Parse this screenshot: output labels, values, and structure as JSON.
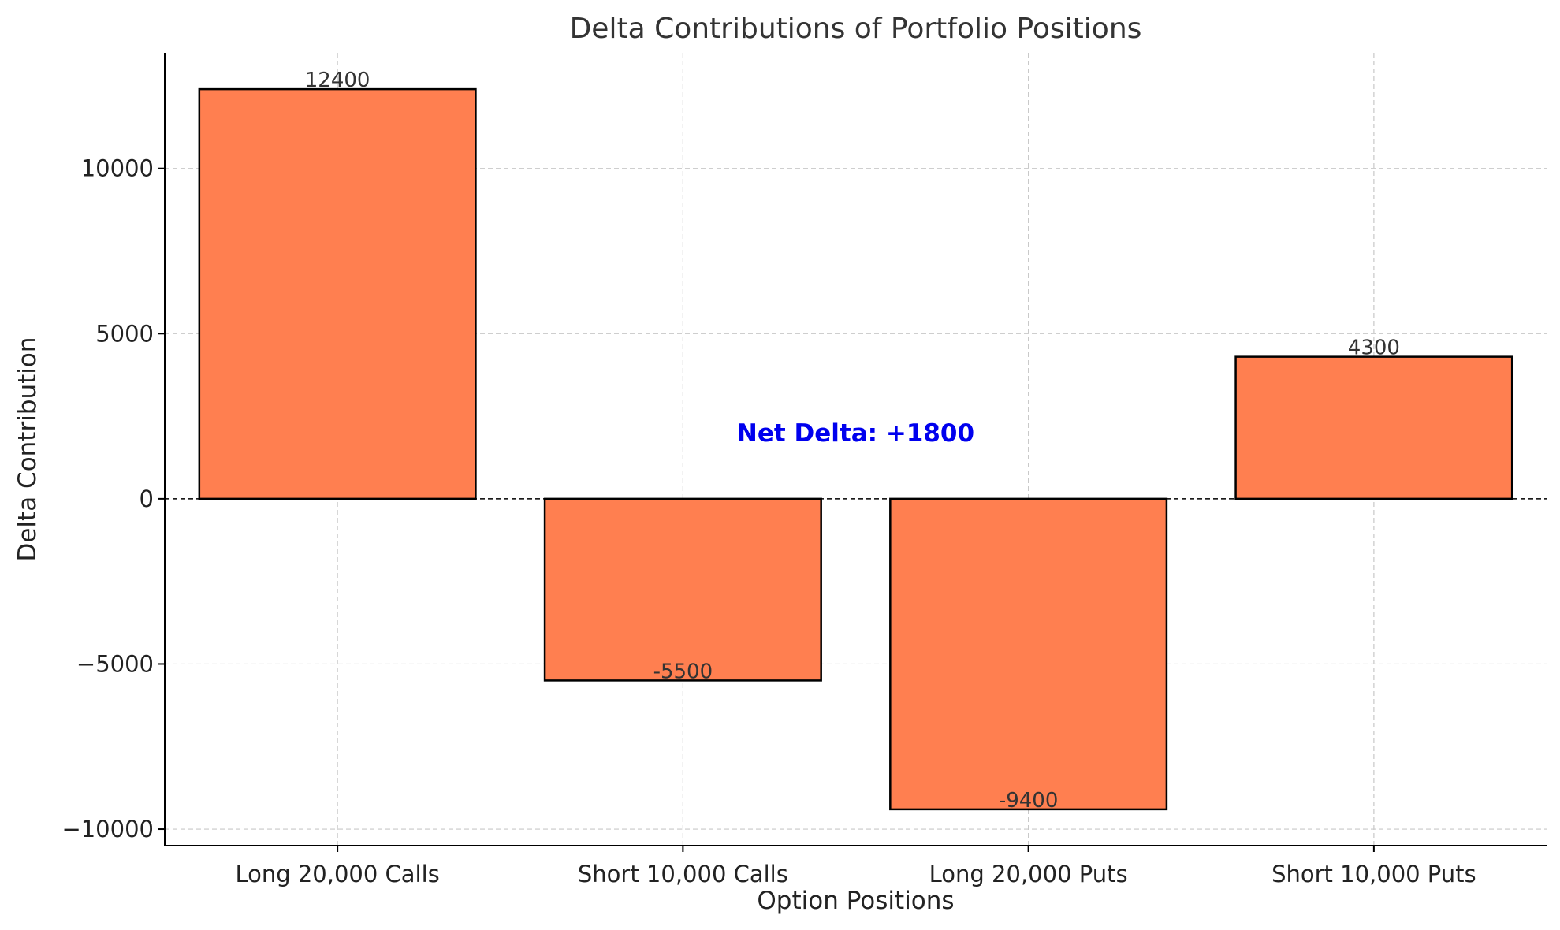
{
  "chart_data": {
    "type": "bar",
    "title": "Delta Contributions of Portfolio Positions",
    "xlabel": "Option Positions",
    "ylabel": "Delta Contribution",
    "categories": [
      "Long 20,000 Calls",
      "Short 10,000 Calls",
      "Long 20,000 Puts",
      "Short 10,000 Puts"
    ],
    "values": [
      12400,
      -5500,
      -9400,
      4300
    ],
    "data_labels": [
      "12400",
      "-5500",
      "-9400",
      "4300"
    ],
    "ylim": [
      -10500,
      13500
    ],
    "yticks": [
      -10000,
      -5000,
      0,
      5000,
      10000
    ],
    "ytick_labels": [
      "−10000",
      "−5000",
      "0",
      "5000",
      "10000"
    ],
    "grid": true,
    "zero_line": true,
    "bar_color": "#ff7f50",
    "annotation": {
      "text": "Net Delta: +1800",
      "x_center": 1.5,
      "y": 2000,
      "color": "#0000ee"
    }
  }
}
